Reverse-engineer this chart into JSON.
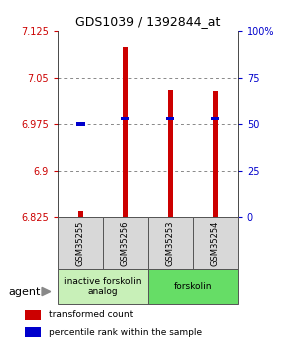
{
  "title": "GDS1039 / 1392844_at",
  "samples": [
    "GSM35255",
    "GSM35256",
    "GSM35253",
    "GSM35254"
  ],
  "bar_values": [
    6.836,
    7.1,
    7.03,
    7.028
  ],
  "bar_bottom": 6.825,
  "blue_values": [
    6.975,
    6.984,
    6.984,
    6.984
  ],
  "ylim": [
    6.825,
    7.125
  ],
  "yticks": [
    6.825,
    6.9,
    6.975,
    7.05,
    7.125
  ],
  "ytick_labels": [
    "6.825",
    "6.9",
    "6.975",
    "7.05",
    "7.125"
  ],
  "y2ticks": [
    0,
    25,
    50,
    75,
    100
  ],
  "y2tick_labels": [
    "0",
    "25",
    "50",
    "75",
    "100%"
  ],
  "groups": [
    {
      "label": "inactive forskolin\nanalog",
      "span": [
        0,
        2
      ],
      "color": "#c8f0b8"
    },
    {
      "label": "forskolin",
      "span": [
        2,
        4
      ],
      "color": "#66dd66"
    }
  ],
  "bar_color": "#cc0000",
  "blue_color": "#0000cc",
  "grid_color": "#888888",
  "bg_color": "#d8d8d8",
  "label_color_left": "#cc0000",
  "label_color_right": "#0000cc",
  "agent_label": "agent",
  "legend_items": [
    {
      "color": "#cc0000",
      "label": "transformed count"
    },
    {
      "color": "#0000cc",
      "label": "percentile rank within the sample"
    }
  ]
}
